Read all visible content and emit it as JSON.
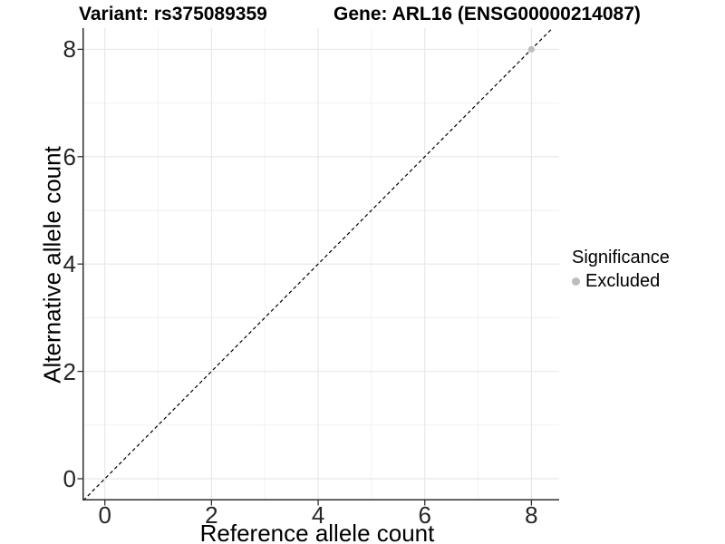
{
  "titles": {
    "variant": "Variant: rs375089359",
    "gene": "Gene: ARL16 (ENSG00000214087)"
  },
  "axes": {
    "x_label": "Reference allele count",
    "y_label": "Alternative allele count"
  },
  "legend": {
    "title": "Significance",
    "items": [
      {
        "label": "Excluded",
        "color": "#bdbdbd"
      }
    ]
  },
  "colors": {
    "background": "#ffffff",
    "major_grid": "#e6e6e6",
    "minor_grid": "#f1f1f1",
    "axis_line": "#2e2e2e",
    "tick_text": "#262626",
    "identity_line": "#000000",
    "point": "#bdbdbd"
  },
  "chart_data": {
    "type": "scatter",
    "title": "Variant: rs375089359   Gene: ARL16 (ENSG00000214087)",
    "xlabel": "Reference allele count",
    "ylabel": "Alternative allele count",
    "xlim": [
      -0.42,
      8.52
    ],
    "ylim": [
      -0.405,
      8.395
    ],
    "xticks": [
      0,
      2,
      4,
      6,
      8
    ],
    "yticks": [
      0,
      2,
      4,
      6,
      8
    ],
    "minor_xticks": [
      1,
      3,
      5,
      7
    ],
    "minor_yticks": [
      1,
      3,
      5,
      7
    ],
    "grid": true,
    "legend_position": "right",
    "legend_title": "Significance",
    "series": [
      {
        "name": "Excluded",
        "color": "#bdbdbd",
        "marker": "circle",
        "points": [
          [
            8,
            8
          ]
        ]
      }
    ],
    "reference_line": {
      "kind": "identity y=x",
      "style": "dashed",
      "color": "#000000"
    }
  }
}
